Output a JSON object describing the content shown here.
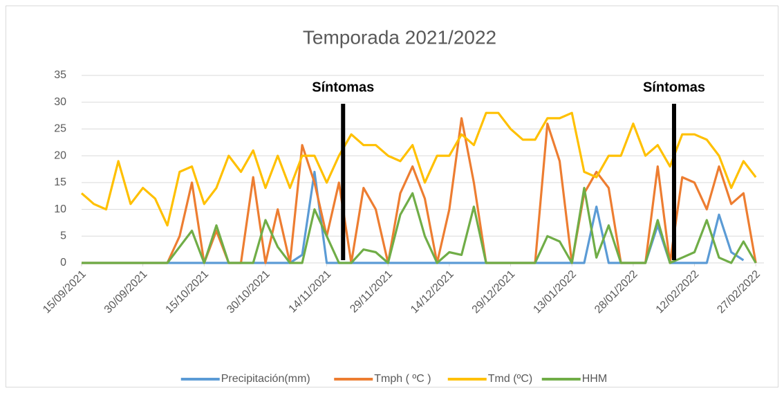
{
  "chart_data": {
    "type": "line",
    "title": "Temporada 2021/2022",
    "x": [
      "15/09/2021",
      "18/09/2021",
      "21/09/2021",
      "24/09/2021",
      "27/09/2021",
      "30/09/2021",
      "03/10/2021",
      "06/10/2021",
      "09/10/2021",
      "12/10/2021",
      "15/10/2021",
      "18/10/2021",
      "21/10/2021",
      "24/10/2021",
      "27/10/2021",
      "30/10/2021",
      "02/11/2021",
      "05/11/2021",
      "08/11/2021",
      "11/11/2021",
      "14/11/2021",
      "17/11/2021",
      "20/11/2021",
      "23/11/2021",
      "26/11/2021",
      "29/11/2021",
      "02/12/2021",
      "05/12/2021",
      "08/12/2021",
      "11/12/2021",
      "14/12/2021",
      "17/12/2021",
      "20/12/2021",
      "23/12/2021",
      "26/12/2021",
      "29/12/2021",
      "01/01/2022",
      "04/01/2022",
      "07/01/2022",
      "10/01/2022",
      "13/01/2022",
      "16/01/2022",
      "19/01/2022",
      "22/01/2022",
      "25/01/2022",
      "28/01/2022",
      "31/01/2022",
      "03/02/2022",
      "06/02/2022",
      "09/02/2022",
      "12/02/2022",
      "15/02/2022",
      "18/02/2022",
      "21/02/2022",
      "24/02/2022",
      "27/02/2022"
    ],
    "series": [
      {
        "name": "Precipitación(mm)",
        "color": "#5b9bd5",
        "values": [
          0,
          0,
          0,
          0,
          0,
          0,
          0,
          0,
          0,
          0,
          0,
          0,
          0,
          0,
          0,
          0,
          0,
          0,
          1.5,
          17,
          0,
          0,
          0,
          0,
          0,
          0,
          0,
          0,
          0,
          0,
          0,
          0,
          0,
          0,
          0,
          0,
          0,
          0,
          0,
          0,
          0,
          0,
          10.5,
          0,
          0,
          0,
          0,
          7,
          0,
          0,
          0,
          0,
          9,
          2,
          0.5,
          null
        ]
      },
      {
        "name": "Tmph ( ºC )",
        "color": "#ed7d31",
        "values": [
          0,
          0,
          0,
          0,
          0,
          0,
          0,
          0,
          5,
          15,
          0,
          6,
          0,
          0,
          16,
          0,
          10,
          0,
          22,
          15,
          5,
          15,
          0,
          14,
          10,
          0,
          13,
          18,
          12,
          0,
          10,
          27,
          15,
          0,
          0,
          0,
          0,
          0,
          26,
          19,
          0,
          13,
          17,
          14,
          0,
          0,
          0,
          18,
          0,
          16,
          15,
          10,
          18,
          11,
          13,
          0
        ]
      },
      {
        "name": "Tmd (ºC)",
        "color": "#ffc000",
        "values": [
          13,
          11,
          10,
          19,
          11,
          14,
          12,
          7,
          17,
          18,
          11,
          14,
          20,
          17,
          21,
          14,
          20,
          14,
          20,
          20,
          15,
          20,
          24,
          22,
          22,
          20,
          19,
          22,
          15,
          20,
          20,
          24,
          22,
          28,
          28,
          25,
          23,
          23,
          27,
          27,
          28,
          17,
          16,
          20,
          20,
          26,
          20,
          22,
          18,
          24,
          24,
          23,
          20,
          14,
          19,
          16
        ]
      },
      {
        "name": "HHM",
        "color": "#70ad47",
        "values": [
          0,
          0,
          0,
          0,
          0,
          0,
          0,
          0,
          3,
          6,
          0,
          7,
          0,
          0,
          0,
          8,
          3,
          0,
          0,
          10,
          5,
          0,
          0,
          2.5,
          2,
          0,
          9,
          13,
          5,
          0,
          2,
          1.5,
          10.5,
          0,
          0,
          0,
          0,
          0,
          5,
          4,
          0,
          14,
          1,
          7,
          0,
          0,
          0,
          8,
          0,
          1,
          2,
          8,
          1,
          0,
          4,
          0
        ]
      }
    ],
    "xlim": [
      "15/09/2021",
      "01/03/2022"
    ],
    "xticks": [
      "15/09/2021",
      "30/09/2021",
      "15/10/2021",
      "30/10/2021",
      "14/11/2021",
      "29/11/2021",
      "14/12/2021",
      "29/12/2021",
      "13/01/2022",
      "28/01/2022",
      "12/02/2022",
      "27/02/2022"
    ],
    "ylim": [
      0,
      35
    ],
    "yticks": [
      0,
      5,
      10,
      15,
      20,
      25,
      30,
      35
    ],
    "grid": true,
    "legend": "bottom",
    "annotations": [
      {
        "text": "Síntomas",
        "x": "18/11/2021"
      },
      {
        "text": "Síntomas",
        "x": "07/02/2022"
      }
    ]
  }
}
